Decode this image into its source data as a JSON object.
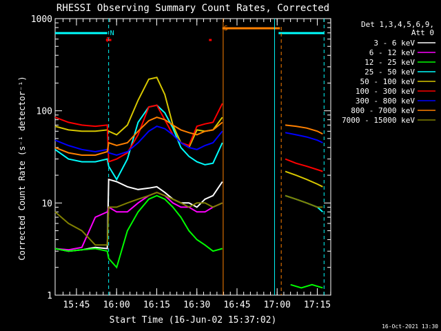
{
  "chart_data": {
    "type": "line",
    "title": "RHESSI Observing Summary Count Rates, Corrected",
    "xlabel": "Start Time (16-Jun-02 15:37:02)",
    "ylabel": "Corrected Count Rate (s⁻¹ detector⁻¹)",
    "yscale": "log",
    "ylim": [
      1,
      1000
    ],
    "xlim_minutes": [
      0,
      103
    ],
    "xticks": [
      {
        "m": 7.97,
        "label": "15:45"
      },
      {
        "m": 22.97,
        "label": "16:00"
      },
      {
        "m": 37.97,
        "label": "16:15"
      },
      {
        "m": 52.97,
        "label": "16:30"
      },
      {
        "m": 67.97,
        "label": "16:45"
      },
      {
        "m": 82.97,
        "label": "17:00"
      },
      {
        "m": 97.97,
        "label": "17:15"
      }
    ],
    "yticks": [
      {
        "v": 1,
        "label": "1"
      },
      {
        "v": 10,
        "label": "10"
      },
      {
        "v": 100,
        "label": "100"
      },
      {
        "v": 1000,
        "label": "1000"
      }
    ],
    "legend": {
      "header": [
        "Det 1,3,4,5,6,9,",
        "Att 0"
      ],
      "placement": "right",
      "entries": [
        {
          "label": "3 - 6 keV",
          "color": "#ffffff"
        },
        {
          "label": "6 - 12 keV",
          "color": "#ff00ff"
        },
        {
          "label": "12 - 25 keV",
          "color": "#00ff00"
        },
        {
          "label": "25 - 50 keV",
          "color": "#00ffff"
        },
        {
          "label": "50 - 100 keV",
          "color": "#d8c800"
        },
        {
          "label": "100 - 300 keV",
          "color": "#ff0000"
        },
        {
          "label": "300 - 800 keV",
          "color": "#0000ff"
        },
        {
          "label": "800 - 7000 keV",
          "color": "#ff8000"
        },
        {
          "label": "7000 - 15000 keV",
          "color": "#808000"
        }
      ]
    },
    "markers": [
      {
        "label": "N",
        "m": 20.0,
        "color": "#00ffff"
      },
      {
        "label": "F",
        "m": 18.5,
        "color": "#ff0000"
      },
      {
        "label": "S",
        "m": 62.5,
        "color": "#ff8000"
      }
    ],
    "eclipse_lines_m": [
      20.0,
      62.8,
      82.0,
      100.5
    ],
    "night_periods_m": [
      [
        0,
        19.5
      ],
      [
        83.5,
        100.5
      ]
    ],
    "saa_period_m": [
      62.5,
      84.0
    ],
    "flare_marks_m": [
      [
        19.0,
        21.0
      ],
      [
        57.5,
        58.5
      ]
    ],
    "gaps_m": [
      [
        62.8,
        86.0
      ]
    ],
    "series": [
      {
        "name": "3 - 6 keV",
        "color": "#ffffff",
        "values": [
          [
            0,
            3.2
          ],
          [
            5,
            3.0
          ],
          [
            10,
            3.1
          ],
          [
            15,
            3.3
          ],
          [
            19.5,
            3.2
          ],
          [
            20,
            18
          ],
          [
            23,
            17
          ],
          [
            27,
            15
          ],
          [
            31,
            14
          ],
          [
            35,
            14.5
          ],
          [
            38,
            15
          ],
          [
            41,
            13
          ],
          [
            44,
            11
          ],
          [
            47,
            10
          ],
          [
            50,
            10
          ],
          [
            53,
            9
          ],
          [
            56,
            11
          ],
          [
            59,
            12
          ],
          [
            62.5,
            17
          ]
        ]
      },
      {
        "name": "6 - 12 keV",
        "color": "#ff00ff",
        "values": [
          [
            0,
            3.2
          ],
          [
            5,
            3.1
          ],
          [
            10,
            3.3
          ],
          [
            15,
            7
          ],
          [
            19.5,
            8
          ],
          [
            20,
            9
          ],
          [
            23,
            8
          ],
          [
            27,
            8
          ],
          [
            31,
            10
          ],
          [
            35,
            12
          ],
          [
            38,
            13
          ],
          [
            41,
            12
          ],
          [
            44,
            10
          ],
          [
            47,
            9
          ],
          [
            50,
            9
          ],
          [
            53,
            8
          ],
          [
            56,
            8
          ],
          [
            59,
            9
          ],
          [
            62.5,
            10
          ]
        ]
      },
      {
        "name": "12 - 25 keV",
        "color": "#00ff00",
        "values": [
          [
            0,
            3.2
          ],
          [
            5,
            3.0
          ],
          [
            10,
            3.1
          ],
          [
            15,
            3.2
          ],
          [
            19.5,
            3.0
          ],
          [
            20,
            2.5
          ],
          [
            23,
            2.0
          ],
          [
            27,
            5
          ],
          [
            31,
            8
          ],
          [
            35,
            11
          ],
          [
            38,
            12
          ],
          [
            41,
            11
          ],
          [
            44,
            9
          ],
          [
            47,
            7
          ],
          [
            50,
            5
          ],
          [
            53,
            4
          ],
          [
            56,
            3.5
          ],
          [
            59,
            3
          ],
          [
            62.5,
            3.2
          ],
          [
            88,
            1.3
          ],
          [
            92,
            1.2
          ],
          [
            96,
            1.3
          ],
          [
            100,
            1.2
          ]
        ]
      },
      {
        "name": "25 - 50 keV",
        "color": "#00ffff",
        "values": [
          [
            0,
            38
          ],
          [
            5,
            30
          ],
          [
            10,
            28
          ],
          [
            15,
            28
          ],
          [
            19.5,
            30
          ],
          [
            20,
            25
          ],
          [
            23,
            18
          ],
          [
            27,
            30
          ],
          [
            31,
            75
          ],
          [
            35,
            110
          ],
          [
            38,
            115
          ],
          [
            41,
            95
          ],
          [
            44,
            65
          ],
          [
            47,
            40
          ],
          [
            50,
            32
          ],
          [
            53,
            28
          ],
          [
            56,
            26
          ],
          [
            59,
            27
          ],
          [
            62.5,
            45
          ],
          [
            86,
            12
          ],
          [
            90,
            11
          ],
          [
            94,
            10
          ],
          [
            98,
            9
          ],
          [
            100,
            8
          ]
        ]
      },
      {
        "name": "50 - 100 keV",
        "color": "#d8c800",
        "values": [
          [
            0,
            68
          ],
          [
            5,
            62
          ],
          [
            10,
            60
          ],
          [
            15,
            60
          ],
          [
            19.5,
            62
          ],
          [
            20,
            60
          ],
          [
            23,
            55
          ],
          [
            27,
            70
          ],
          [
            31,
            130
          ],
          [
            35,
            220
          ],
          [
            38,
            230
          ],
          [
            41,
            150
          ],
          [
            44,
            70
          ],
          [
            47,
            45
          ],
          [
            50,
            40
          ],
          [
            53,
            62
          ],
          [
            56,
            60
          ],
          [
            59,
            62
          ],
          [
            62.5,
            85
          ],
          [
            86,
            22
          ],
          [
            90,
            20
          ],
          [
            94,
            18
          ],
          [
            98,
            16
          ],
          [
            100,
            15
          ]
        ]
      },
      {
        "name": "100 - 300 keV",
        "color": "#ff0000",
        "values": [
          [
            0,
            85
          ],
          [
            5,
            75
          ],
          [
            10,
            70
          ],
          [
            15,
            68
          ],
          [
            19.5,
            70
          ],
          [
            20,
            28
          ],
          [
            23,
            30
          ],
          [
            27,
            35
          ],
          [
            31,
            55
          ],
          [
            35,
            110
          ],
          [
            38,
            115
          ],
          [
            41,
            80
          ],
          [
            44,
            55
          ],
          [
            47,
            45
          ],
          [
            50,
            42
          ],
          [
            53,
            68
          ],
          [
            56,
            72
          ],
          [
            59,
            75
          ],
          [
            62.5,
            120
          ],
          [
            86,
            30
          ],
          [
            90,
            27
          ],
          [
            94,
            25
          ],
          [
            98,
            23
          ],
          [
            100,
            22
          ]
        ]
      },
      {
        "name": "300 - 800 keV",
        "color": "#0000ff",
        "values": [
          [
            0,
            48
          ],
          [
            5,
            42
          ],
          [
            10,
            38
          ],
          [
            15,
            36
          ],
          [
            19.5,
            38
          ],
          [
            20,
            35
          ],
          [
            23,
            33
          ],
          [
            27,
            36
          ],
          [
            31,
            45
          ],
          [
            35,
            60
          ],
          [
            38,
            68
          ],
          [
            41,
            64
          ],
          [
            44,
            55
          ],
          [
            47,
            45
          ],
          [
            50,
            40
          ],
          [
            53,
            38
          ],
          [
            56,
            42
          ],
          [
            59,
            45
          ],
          [
            62.5,
            60
          ],
          [
            86,
            58
          ],
          [
            90,
            55
          ],
          [
            94,
            52
          ],
          [
            98,
            48
          ],
          [
            100,
            45
          ]
        ]
      },
      {
        "name": "800 - 7000 keV",
        "color": "#ff8000",
        "values": [
          [
            0,
            40
          ],
          [
            5,
            35
          ],
          [
            10,
            33
          ],
          [
            15,
            33
          ],
          [
            19.5,
            36
          ],
          [
            20,
            45
          ],
          [
            23,
            42
          ],
          [
            27,
            45
          ],
          [
            31,
            60
          ],
          [
            35,
            78
          ],
          [
            38,
            85
          ],
          [
            41,
            80
          ],
          [
            44,
            70
          ],
          [
            47,
            62
          ],
          [
            50,
            58
          ],
          [
            53,
            55
          ],
          [
            56,
            60
          ],
          [
            59,
            62
          ],
          [
            62.5,
            75
          ],
          [
            86,
            70
          ],
          [
            90,
            68
          ],
          [
            94,
            65
          ],
          [
            98,
            60
          ],
          [
            100,
            56
          ]
        ]
      },
      {
        "name": "7000 - 15000 keV",
        "color": "#808000",
        "values": [
          [
            0,
            8
          ],
          [
            5,
            6
          ],
          [
            10,
            5
          ],
          [
            15,
            3.5
          ],
          [
            19.5,
            3.5
          ],
          [
            20,
            9
          ],
          [
            23,
            9
          ],
          [
            27,
            10
          ],
          [
            31,
            11
          ],
          [
            35,
            12
          ],
          [
            38,
            13
          ],
          [
            41,
            12
          ],
          [
            44,
            11
          ],
          [
            47,
            10
          ],
          [
            50,
            9
          ],
          [
            53,
            10
          ],
          [
            56,
            10
          ],
          [
            59,
            9
          ],
          [
            62.5,
            10
          ],
          [
            86,
            12
          ],
          [
            90,
            11
          ],
          [
            94,
            10
          ],
          [
            98,
            9
          ],
          [
            100,
            9
          ]
        ]
      }
    ]
  },
  "footer": {
    "timestamp": "16-Oct-2021 13:30"
  }
}
